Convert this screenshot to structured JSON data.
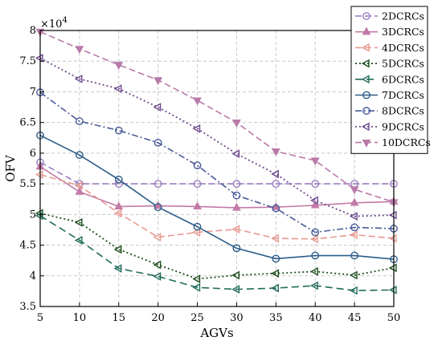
{
  "chart_data": {
    "type": "line",
    "xlabel": "AGVs",
    "ylabel": "OFV",
    "y_multiplier": "×10",
    "y_multiplier_exp": "4",
    "xlim": [
      5,
      50
    ],
    "ylim": [
      3.5,
      8
    ],
    "grid": true,
    "legend_position": "top-right",
    "x": [
      5,
      10,
      15,
      20,
      25,
      30,
      35,
      40,
      45,
      50
    ],
    "x_ticks": [
      "5",
      "10",
      "15",
      "20",
      "25",
      "30",
      "35",
      "40",
      "45",
      "50"
    ],
    "y_ticks": [
      {
        "value": 3.5,
        "label": "3.5"
      },
      {
        "value": 4,
        "label": "4"
      },
      {
        "value": 4.5,
        "label": "4.5"
      },
      {
        "value": 5,
        "label": "5"
      },
      {
        "value": 5.5,
        "label": "5.5"
      },
      {
        "value": 6,
        "label": "6"
      },
      {
        "value": 6.5,
        "label": "6.5"
      },
      {
        "value": 7,
        "label": "7"
      },
      {
        "value": 7.5,
        "label": "7.5"
      },
      {
        "value": 8,
        "label": "8"
      }
    ],
    "series": [
      {
        "name": "2DCRCs",
        "color": "#9b7cc0",
        "dash": "8,4",
        "marker": "circle",
        "width": 1.6,
        "values": [
          5.85,
          5.5,
          5.5,
          5.5,
          5.5,
          5.5,
          5.5,
          5.5,
          5.5,
          5.5
        ]
      },
      {
        "name": "3DCRCs",
        "color": "#c27aa6",
        "dash": "",
        "marker": "triangle-up",
        "width": 1.6,
        "values": [
          5.78,
          5.37,
          5.13,
          5.14,
          5.13,
          5.11,
          5.12,
          5.15,
          5.19,
          5.21
        ]
      },
      {
        "name": "4DCRCs",
        "color": "#e8998f",
        "dash": "8,4",
        "marker": "triangle-left",
        "width": 1.6,
        "values": [
          5.65,
          5.47,
          5.02,
          4.63,
          4.71,
          4.76,
          4.61,
          4.6,
          4.67,
          4.61
        ]
      },
      {
        "name": "5DCRCs",
        "color": "#1d4d1d",
        "dash": "2,3",
        "marker": "triangle-left",
        "width": 1.8,
        "values": [
          5.02,
          4.87,
          4.43,
          4.18,
          3.95,
          4.01,
          4.04,
          4.07,
          4.01,
          4.13
        ]
      },
      {
        "name": "6DCRCs",
        "color": "#1f6b5a",
        "dash": "9,5",
        "marker": "triangle-left",
        "width": 1.6,
        "values": [
          4.98,
          4.58,
          4.12,
          3.99,
          3.81,
          3.78,
          3.8,
          3.84,
          3.76,
          3.77
        ]
      },
      {
        "name": "7DCRCs",
        "color": "#2c5d8a",
        "dash": "",
        "marker": "circle",
        "width": 1.6,
        "values": [
          6.29,
          5.97,
          5.57,
          5.12,
          4.8,
          4.45,
          4.28,
          4.33,
          4.33,
          4.27
        ]
      },
      {
        "name": "8DCRCs",
        "color": "#4a5b9a",
        "dash": "8,3,2,3",
        "marker": "circle",
        "width": 1.6,
        "values": [
          6.99,
          6.52,
          6.37,
          6.17,
          5.8,
          5.31,
          5.1,
          4.71,
          4.79,
          4.77
        ]
      },
      {
        "name": "9DCRCs",
        "color": "#6f4a8e",
        "dash": "2,3",
        "marker": "triangle-left",
        "width": 1.8,
        "values": [
          7.55,
          7.21,
          7.05,
          6.75,
          6.4,
          5.99,
          5.66,
          5.23,
          4.97,
          4.99
        ]
      },
      {
        "name": "10DCRCs",
        "color": "#b87aa8",
        "dash": "8,4",
        "marker": "triangle-down",
        "width": 1.6,
        "values": [
          7.98,
          7.7,
          7.44,
          7.19,
          6.86,
          6.5,
          6.03,
          5.88,
          5.41,
          5.2
        ]
      }
    ]
  }
}
